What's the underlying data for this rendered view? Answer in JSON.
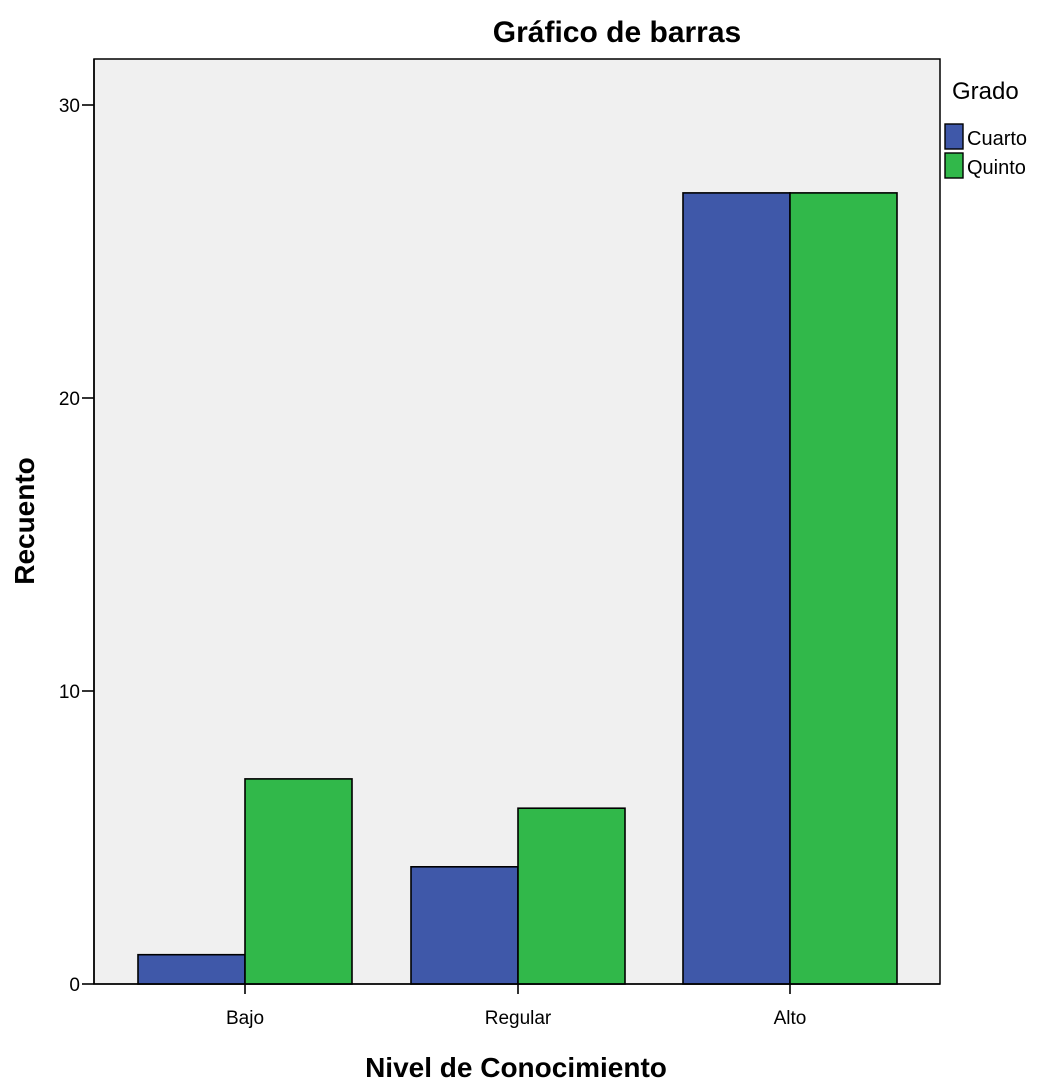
{
  "chart_data": {
    "type": "bar",
    "title": "Gráfico de barras",
    "xlabel": "Nivel de Conocimiento",
    "ylabel": "Recuento",
    "categories": [
      "Bajo",
      "Regular",
      "Alto"
    ],
    "series": [
      {
        "name": "Cuarto",
        "values": [
          1,
          4,
          27
        ],
        "color": "#3f58a9"
      },
      {
        "name": "Quinto",
        "values": [
          7,
          6,
          27
        ],
        "color": "#31b84a"
      }
    ],
    "ylim": [
      0,
      30
    ],
    "yticks": [
      "0",
      "10",
      "20",
      "30"
    ],
    "legend_title": "Grado",
    "legend_position": "right",
    "grid": false,
    "plot_background": "#f0f0f0"
  }
}
